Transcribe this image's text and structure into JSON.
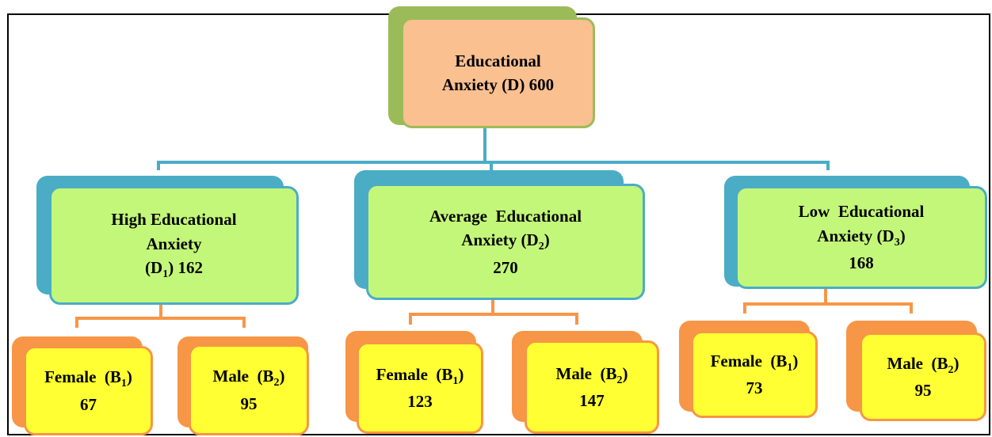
{
  "root": {
    "lines": [
      [
        "Educational"
      ],
      [
        "Anxiety (D) 600"
      ]
    ]
  },
  "groups": [
    {
      "lines": [
        [
          "High Educational"
        ],
        [
          "Anxiety"
        ],
        [
          "(D",
          "1",
          ") 162"
        ]
      ],
      "children": [
        {
          "lines": [
            [
              "Female  (B",
              "1",
              ")"
            ],
            [
              "67"
            ]
          ]
        },
        {
          "lines": [
            [
              "Male  (B",
              "2",
              ")"
            ],
            [
              "95"
            ]
          ]
        }
      ]
    },
    {
      "lines": [
        [
          "Average  Educational"
        ],
        [
          "Anxiety (D",
          "2",
          ")"
        ],
        [
          "270"
        ]
      ],
      "children": [
        {
          "lines": [
            [
              "Female  (B",
              "1",
              ")"
            ],
            [
              "123"
            ]
          ]
        },
        {
          "lines": [
            [
              "Male  (B",
              "2",
              ")"
            ],
            [
              "147"
            ]
          ]
        }
      ]
    },
    {
      "lines": [
        [
          "Low  Educational"
        ],
        [
          "Anxiety (D",
          "3",
          ")"
        ],
        [
          "168"
        ]
      ],
      "children": [
        {
          "lines": [
            [
              "Female  (B",
              "1",
              ")"
            ],
            [
              "73"
            ]
          ]
        },
        {
          "lines": [
            [
              "Male  (B",
              "2",
              ")"
            ],
            [
              "95"
            ]
          ]
        }
      ]
    }
  ]
}
